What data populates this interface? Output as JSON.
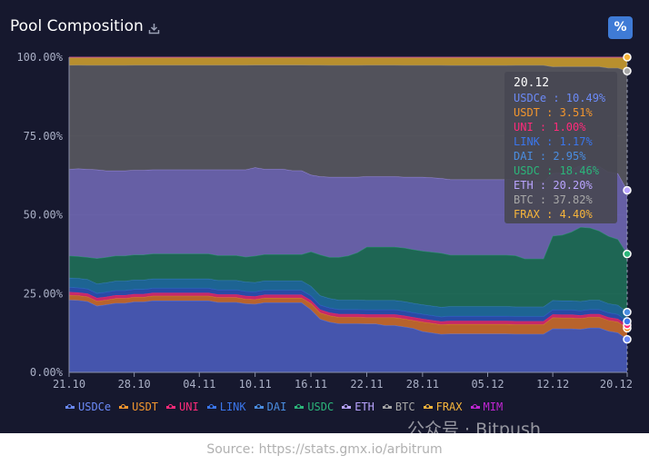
{
  "header": {
    "title": "Pool Composition",
    "percent_toggle_label": "%"
  },
  "footer": {
    "source": "Source: https://stats.gmx.io/arbitrum",
    "watermark": "公众号 · Bitpush"
  },
  "tooltip": {
    "date": "20.12",
    "rows": [
      {
        "text": "USDCe : 10.49%",
        "color": "#6b8af7"
      },
      {
        "text": "USDT : 3.51%",
        "color": "#f3962e"
      },
      {
        "text": "UNI : 1.00%",
        "color": "#ff2b7a"
      },
      {
        "text": "LINK : 1.17%",
        "color": "#3a76ec"
      },
      {
        "text": "DAI : 2.95%",
        "color": "#4a8de0"
      },
      {
        "text": "USDC : 18.46%",
        "color": "#2bb57a"
      },
      {
        "text": "ETH : 20.20%",
        "color": "#b9a4ff"
      },
      {
        "text": "BTC : 37.82%",
        "color": "#a7a7a7"
      },
      {
        "text": "FRAX : 4.40%",
        "color": "#f7b53b"
      }
    ]
  },
  "chart_data": {
    "type": "area",
    "stacked": true,
    "normalized": true,
    "ylim": [
      0,
      100
    ],
    "yticks": [
      "0.00%",
      "25.00%",
      "50.00%",
      "75.00%",
      "100.00%"
    ],
    "x": [
      "21.10",
      "22.10",
      "23.10",
      "24.10",
      "25.10",
      "26.10",
      "27.10",
      "28.10",
      "29.10",
      "30.10",
      "31.10",
      "01.11",
      "02.11",
      "03.11",
      "04.11",
      "05.11",
      "06.11",
      "07.11",
      "08.11",
      "09.11",
      "10.11",
      "11.11",
      "12.11",
      "13.11",
      "14.11",
      "15.11",
      "16.11",
      "17.11",
      "18.11",
      "19.11",
      "20.11",
      "21.11",
      "22.11",
      "23.11",
      "24.11",
      "25.11",
      "26.11",
      "27.11",
      "28.11",
      "29.11",
      "30.11",
      "01.12",
      "02.12",
      "03.12",
      "04.12",
      "05.12",
      "06.12",
      "07.12",
      "08.12",
      "09.12",
      "10.12",
      "11.12",
      "12.12",
      "13.12",
      "14.12",
      "15.12",
      "16.12",
      "17.12",
      "18.12",
      "19.12",
      "20.12"
    ],
    "xtick_labels": [
      "21.10",
      "28.10",
      "04.11",
      "10.11",
      "16.11",
      "22.11",
      "28.11",
      "05.12",
      "12.12",
      "20.12"
    ],
    "series": [
      {
        "name": "USDCe",
        "color": "#4a5bb8",
        "line": "#6b8af7",
        "values": [
          23,
          23,
          22.5,
          21,
          21.5,
          22,
          22,
          22.5,
          22.5,
          23,
          23,
          23,
          23,
          23,
          23,
          23,
          22.5,
          22.5,
          22.5,
          22,
          22,
          22.5,
          22.5,
          22.5,
          22.5,
          22.5,
          20,
          17,
          16,
          15.5,
          15.5,
          15.5,
          15.5,
          15.5,
          15,
          15,
          14.5,
          14,
          13,
          12.5,
          12,
          12,
          12,
          12,
          12,
          12,
          12,
          12,
          12,
          12,
          12,
          12,
          14,
          14,
          14,
          14,
          14.5,
          14.5,
          13.5,
          13,
          10.49
        ]
      },
      {
        "name": "USDT",
        "color": "#c76a2d",
        "line": "#f3962e",
        "values": [
          1.5,
          1.5,
          1.5,
          1.5,
          1.5,
          1.5,
          1.5,
          1.5,
          1.5,
          1.5,
          1.5,
          1.5,
          1.5,
          1.5,
          1.5,
          1.5,
          1.5,
          1.5,
          1.5,
          1.5,
          1.5,
          1.5,
          1.5,
          1.5,
          1.5,
          1.5,
          2,
          2,
          2,
          2,
          2,
          2,
          2,
          2,
          2.5,
          2.5,
          2.5,
          2.5,
          3,
          3,
          3,
          3,
          3,
          3,
          3,
          3,
          3,
          3,
          3,
          3,
          3,
          3,
          3.5,
          3.5,
          3.5,
          3.5,
          3.5,
          3.5,
          3.5,
          3.5,
          3.51
        ]
      },
      {
        "name": "UNI",
        "color": "#d62a6e",
        "line": "#ff2b7a",
        "values": [
          1,
          1,
          1,
          1,
          1,
          1,
          1,
          1,
          1,
          1,
          1,
          1,
          1,
          1,
          1,
          1,
          1,
          1,
          1,
          1,
          1,
          1,
          1,
          1,
          1,
          1,
          1,
          1,
          1,
          1,
          1,
          1,
          1,
          1,
          1,
          1,
          1,
          1,
          1,
          1,
          1,
          1,
          1,
          1,
          1,
          1,
          1,
          1,
          1,
          1,
          1,
          1,
          1,
          1,
          1,
          1,
          1,
          1,
          1,
          1,
          1.0
        ]
      },
      {
        "name": "LINK",
        "color": "#2b4fb0",
        "line": "#3a76ec",
        "values": [
          1.5,
          1.5,
          1.5,
          1.5,
          1.5,
          1.5,
          1.5,
          1.5,
          1.5,
          1.5,
          1.5,
          1.5,
          1.5,
          1.5,
          1.5,
          1.5,
          1.5,
          1.5,
          1.5,
          1.5,
          1.5,
          1.5,
          1.5,
          1.5,
          1.5,
          1.5,
          1.5,
          1.5,
          1.5,
          1.5,
          1.5,
          1.5,
          1.5,
          1.5,
          1.5,
          1.5,
          1.5,
          1.5,
          1.5,
          1.5,
          1.5,
          1.5,
          1.5,
          1.5,
          1.5,
          1.5,
          1.5,
          1.5,
          1.5,
          1.5,
          1.5,
          1.5,
          1.5,
          1.5,
          1.5,
          1.5,
          1.5,
          1.5,
          1.5,
          1.5,
          1.17
        ]
      },
      {
        "name": "DAI",
        "color": "#1e6b9c",
        "line": "#4a8de0",
        "values": [
          3,
          3,
          3,
          3,
          3,
          3,
          3,
          3,
          3,
          3,
          3,
          3,
          3,
          3,
          3,
          3,
          3,
          3,
          3,
          3,
          3,
          3,
          3,
          3,
          3,
          3,
          3,
          3,
          3,
          3,
          3,
          3,
          3,
          3,
          3,
          3,
          3,
          3,
          3,
          3,
          3,
          3,
          3,
          3,
          3,
          3,
          3,
          3,
          3,
          3,
          3,
          3,
          3,
          3,
          3,
          3,
          3,
          3,
          3,
          3,
          2.95
        ]
      },
      {
        "name": "USDC",
        "color": "#1f6e58",
        "line": "#2bb57a",
        "values": [
          7,
          7,
          7,
          8,
          8,
          8,
          8,
          8,
          8,
          8,
          8,
          8,
          8,
          8,
          8,
          8,
          8,
          8,
          8,
          8,
          8.5,
          8.5,
          8.5,
          8.5,
          8.5,
          8.5,
          11,
          13,
          13,
          13.5,
          14,
          15,
          17,
          17,
          17,
          17,
          17,
          17,
          17,
          17,
          17,
          16,
          16,
          16,
          16,
          16,
          16,
          16,
          16,
          15,
          15,
          15,
          20.5,
          21,
          22,
          24,
          23.5,
          22.5,
          22,
          21.5,
          18.46
        ]
      },
      {
        "name": "ETH",
        "color": "#6e66b0",
        "line": "#b9a4ff",
        "values": [
          27.5,
          28,
          28,
          28,
          27.5,
          27,
          27,
          27,
          27,
          27,
          27,
          27,
          27,
          27,
          27,
          27,
          27.5,
          27.5,
          27.5,
          28,
          28.5,
          27.5,
          27.5,
          27.5,
          27,
          27,
          24.5,
          25,
          25.5,
          25.5,
          25,
          24,
          22.5,
          22.5,
          22.5,
          22.5,
          22.5,
          23,
          23.5,
          23.5,
          23.5,
          23.5,
          23.5,
          23.5,
          23.5,
          23.5,
          23.5,
          23.5,
          24,
          24,
          24,
          24,
          20,
          20,
          20,
          20,
          20.5,
          21,
          21,
          21.5,
          20.2
        ]
      },
      {
        "name": "BTC",
        "color": "#58585f",
        "line": "#a7a7a7",
        "values": [
          33,
          33,
          33,
          33,
          33.5,
          33.5,
          33.5,
          33.5,
          33.5,
          33.5,
          33.5,
          33.5,
          33.5,
          33.5,
          33.5,
          33.5,
          33.5,
          33.5,
          33.5,
          33.5,
          33,
          33.5,
          33.5,
          33.5,
          34,
          34,
          35,
          35.5,
          35.5,
          35.5,
          35.5,
          35.5,
          35.5,
          35.5,
          35.5,
          35.5,
          35.5,
          35.5,
          35.5,
          35.5,
          35.5,
          35.5,
          35.5,
          35.5,
          35.5,
          35.5,
          35.5,
          35.5,
          35.5,
          36.5,
          36.5,
          36.5,
          34,
          34,
          33,
          32,
          32,
          32.5,
          34,
          34.5,
          37.82
        ]
      },
      {
        "name": "FRAX",
        "color": "#c79a2f",
        "line": "#f7b53b",
        "values": [
          2.5,
          2.5,
          2.5,
          2.5,
          2.5,
          2.5,
          2.5,
          2.5,
          2.5,
          2.5,
          2.5,
          2.5,
          2.5,
          2.5,
          2.5,
          2.5,
          2.5,
          2.5,
          2.5,
          2.5,
          2.5,
          2.5,
          2.5,
          2.5,
          2.5,
          2.5,
          2.5,
          2.5,
          2.5,
          2.5,
          2.5,
          2.5,
          2.5,
          2.5,
          2.5,
          2.5,
          2.5,
          2.5,
          2.5,
          2.5,
          2.5,
          2.5,
          2.5,
          2.5,
          2.5,
          2.5,
          2.5,
          2.5,
          2.5,
          2.5,
          2.5,
          2.5,
          3,
          3,
          3,
          3,
          3,
          3,
          3.5,
          3.5,
          4.4
        ]
      },
      {
        "name": "MIM",
        "color": "#8a2aa8",
        "line": "#c026d3",
        "values": [
          0,
          0,
          0,
          0,
          0,
          0,
          0,
          0,
          0,
          0,
          0,
          0,
          0,
          0,
          0,
          0,
          0,
          0,
          0,
          0,
          0,
          0,
          0,
          0,
          0,
          0,
          0,
          0,
          0,
          0,
          0,
          0,
          0,
          0,
          0,
          0,
          0,
          0,
          0,
          0,
          0,
          0,
          0,
          0,
          0,
          0,
          0,
          0,
          0,
          0,
          0,
          0,
          0,
          0,
          0,
          0,
          0,
          0,
          0,
          0,
          0
        ]
      }
    ]
  }
}
